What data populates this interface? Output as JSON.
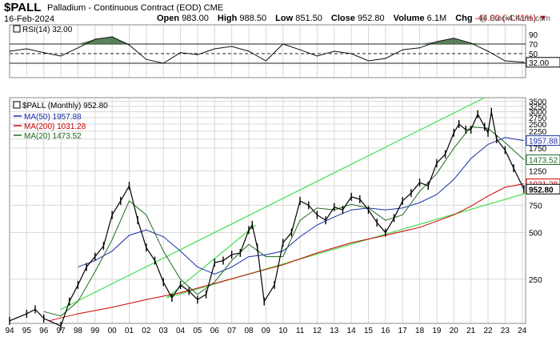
{
  "header": {
    "ticker": "$PALL",
    "company": "Palladium - Continuous Contract (EOD)",
    "exchange": "CME",
    "date": "16-Feb-2024",
    "watermark": "@ StockCharts.com",
    "ohlc": {
      "open_label": "Open",
      "open": "983.00",
      "high_label": "High",
      "high": "988.50",
      "low_label": "Low",
      "low": "851.50",
      "close_label": "Close",
      "close": "952.80",
      "volume_label": "Volume",
      "volume": "6.1M",
      "chg_label": "Chg",
      "chg": "-44.00 (-4.41%)",
      "chg_icon": "down-triangle-icon"
    }
  },
  "colors": {
    "price": "#000000",
    "ma50": "#1a2fa8",
    "ma200": "#cc0000",
    "ma20": "#1e6b1e",
    "trendline": "#55e055",
    "rsi_fill": "#3d6b3d",
    "grid": "#d8d8d8"
  },
  "chart_data": [
    {
      "type": "line",
      "title": "RSI(14) 32.00",
      "legend_label": "RSI(14) 32.00",
      "series_name": "RSI(14)",
      "current_value_label": "32.00",
      "ylim": [
        0,
        100
      ],
      "y_ticks": [
        30,
        50,
        70,
        90
      ],
      "y_tick_labels": [
        "30",
        "50",
        "70",
        "90"
      ],
      "dashed_levels": [
        50
      ],
      "solid_levels": [
        30,
        70
      ],
      "x": [
        1994,
        1995,
        1996,
        1997,
        1998,
        1999,
        2000,
        2001,
        2002,
        2003,
        2004,
        2005,
        2006,
        2007,
        2008,
        2009,
        2010,
        2011,
        2012,
        2013,
        2014,
        2015,
        2016,
        2017,
        2018,
        2019,
        2020,
        2021,
        2022,
        2023,
        2024.1
      ],
      "values": [
        55,
        60,
        52,
        45,
        62,
        80,
        85,
        68,
        38,
        30,
        52,
        48,
        60,
        65,
        55,
        35,
        70,
        58,
        45,
        55,
        50,
        35,
        40,
        58,
        62,
        75,
        82,
        72,
        55,
        35,
        32
      ]
    },
    {
      "type": "line",
      "title": "$PALL (Monthly) 952.80",
      "legend_label": "$PALL (Monthly) 952.80",
      "yscale": "log",
      "ylim": [
        130,
        3700
      ],
      "y_ticks": [
        250,
        500,
        750,
        1000,
        1250,
        1750,
        2000,
        2250,
        2500,
        2750,
        3000,
        3250,
        3500
      ],
      "y_tick_labels": [
        "250",
        "500",
        "750",
        "1000",
        "1250",
        "1750",
        "2000",
        "2250",
        "2500",
        "2750",
        "3000",
        "3250",
        "3500"
      ],
      "x_ticks": [
        1994,
        1995,
        1996,
        1997,
        1998,
        1999,
        2000,
        2001,
        2002,
        2003,
        2004,
        2005,
        2006,
        2007,
        2008,
        2009,
        2010,
        2011,
        2012,
        2013,
        2014,
        2015,
        2016,
        2017,
        2018,
        2019,
        2020,
        2021,
        2022,
        2023,
        2024
      ],
      "x_tick_labels": [
        "94",
        "95",
        "96",
        "97",
        "98",
        "99",
        "00",
        "01",
        "02",
        "03",
        "04",
        "05",
        "06",
        "07",
        "08",
        "09",
        "10",
        "11",
        "12",
        "13",
        "14",
        "15",
        "16",
        "17",
        "18",
        "19",
        "20",
        "21",
        "22",
        "23",
        "24"
      ],
      "series": [
        {
          "name": "$PALL",
          "color_key": "price",
          "x": [
            1994,
            1995,
            1995.5,
            1996,
            1997,
            1997.5,
            1998,
            1998.5,
            1999,
            1999.5,
            2000,
            2000.5,
            2001,
            2001.5,
            2002,
            2002.5,
            2003,
            2003.5,
            2004,
            2004.5,
            2005,
            2005.5,
            2006,
            2006.5,
            2007,
            2007.5,
            2008,
            2008.2,
            2008.5,
            2008.9,
            2009.5,
            2010,
            2010.5,
            2011,
            2011.5,
            2012,
            2012.5,
            2013,
            2013.5,
            2014,
            2014.5,
            2015,
            2015.5,
            2016,
            2016.5,
            2017,
            2017.5,
            2018,
            2018.5,
            2019,
            2019.5,
            2020,
            2020.3,
            2020.7,
            2021,
            2021.4,
            2021.8,
            2022,
            2022.2,
            2022.5,
            2023,
            2023.5,
            2024.1
          ],
          "values": [
            135,
            150,
            160,
            140,
            125,
            180,
            230,
            300,
            350,
            410,
            650,
            800,
            1000,
            600,
            400,
            330,
            240,
            190,
            230,
            210,
            185,
            200,
            320,
            330,
            360,
            370,
            520,
            560,
            400,
            180,
            230,
            430,
            500,
            800,
            750,
            650,
            600,
            730,
            700,
            850,
            820,
            700,
            580,
            500,
            620,
            800,
            900,
            1050,
            1000,
            1400,
            1600,
            2200,
            2500,
            2300,
            2300,
            2900,
            2400,
            2200,
            3000,
            2000,
            1700,
            1300,
            952.8
          ]
        },
        {
          "name": "MA(50)",
          "legend_label": "MA(50) 1957.88",
          "current_value_label": "1957.88",
          "color_key": "ma50",
          "x": [
            1998,
            1999,
            2000,
            2001,
            2002,
            2003,
            2004,
            2005,
            2006,
            2007,
            2008,
            2009,
            2010,
            2011,
            2012,
            2013,
            2014,
            2015,
            2016,
            2017,
            2018,
            2019,
            2020,
            2021,
            2022,
            2023,
            2024.1
          ],
          "values": [
            300,
            330,
            380,
            480,
            520,
            470,
            380,
            300,
            270,
            300,
            350,
            360,
            380,
            470,
            560,
            630,
            700,
            720,
            700,
            720,
            780,
            880,
            1100,
            1500,
            1850,
            2050,
            1957.88
          ]
        },
        {
          "name": "MA(200)",
          "legend_label": "MA(200) 1031.28",
          "current_value_label": "1031.28",
          "color_key": "ma200",
          "x": [
            1996.3,
            1998,
            2000,
            2002,
            2004,
            2006,
            2008,
            2010,
            2012,
            2014,
            2016,
            2018,
            2020,
            2021,
            2022,
            2023,
            2024.1
          ],
          "values": [
            135,
            150,
            165,
            185,
            205,
            235,
            270,
            310,
            370,
            430,
            480,
            540,
            650,
            740,
            860,
            980,
            1031.28
          ]
        },
        {
          "name": "MA(20)",
          "legend_label": "MA(20) 1473.52",
          "current_value_label": "1473.52",
          "color_key": "ma20",
          "x": [
            1996,
            1997,
            1998,
            1999,
            2000,
            2001,
            2002,
            2003,
            2004,
            2005,
            2006,
            2007,
            2008,
            2009,
            2010,
            2011,
            2012,
            2013,
            2014,
            2015,
            2016,
            2017,
            2018,
            2019,
            2020,
            2021,
            2022,
            2023,
            2024.1
          ],
          "values": [
            155,
            145,
            180,
            280,
            450,
            800,
            650,
            380,
            250,
            200,
            240,
            330,
            420,
            350,
            350,
            600,
            720,
            700,
            760,
            720,
            600,
            650,
            920,
            1200,
            1750,
            2400,
            2350,
            1900,
            1473.52
          ]
        }
      ],
      "trendlines": [
        {
          "name": "upper-channel",
          "x": [
            1997,
            2021.8
          ],
          "values": [
            160,
            3700
          ]
        },
        {
          "name": "middle-channel",
          "x": [
            2003.2,
            2008.4
          ],
          "values": [
            190,
            560
          ]
        },
        {
          "name": "lower-channel",
          "x": [
            2003.2,
            2024.3
          ],
          "values": [
            190,
            900
          ]
        }
      ],
      "price_label": "952.80"
    }
  ]
}
